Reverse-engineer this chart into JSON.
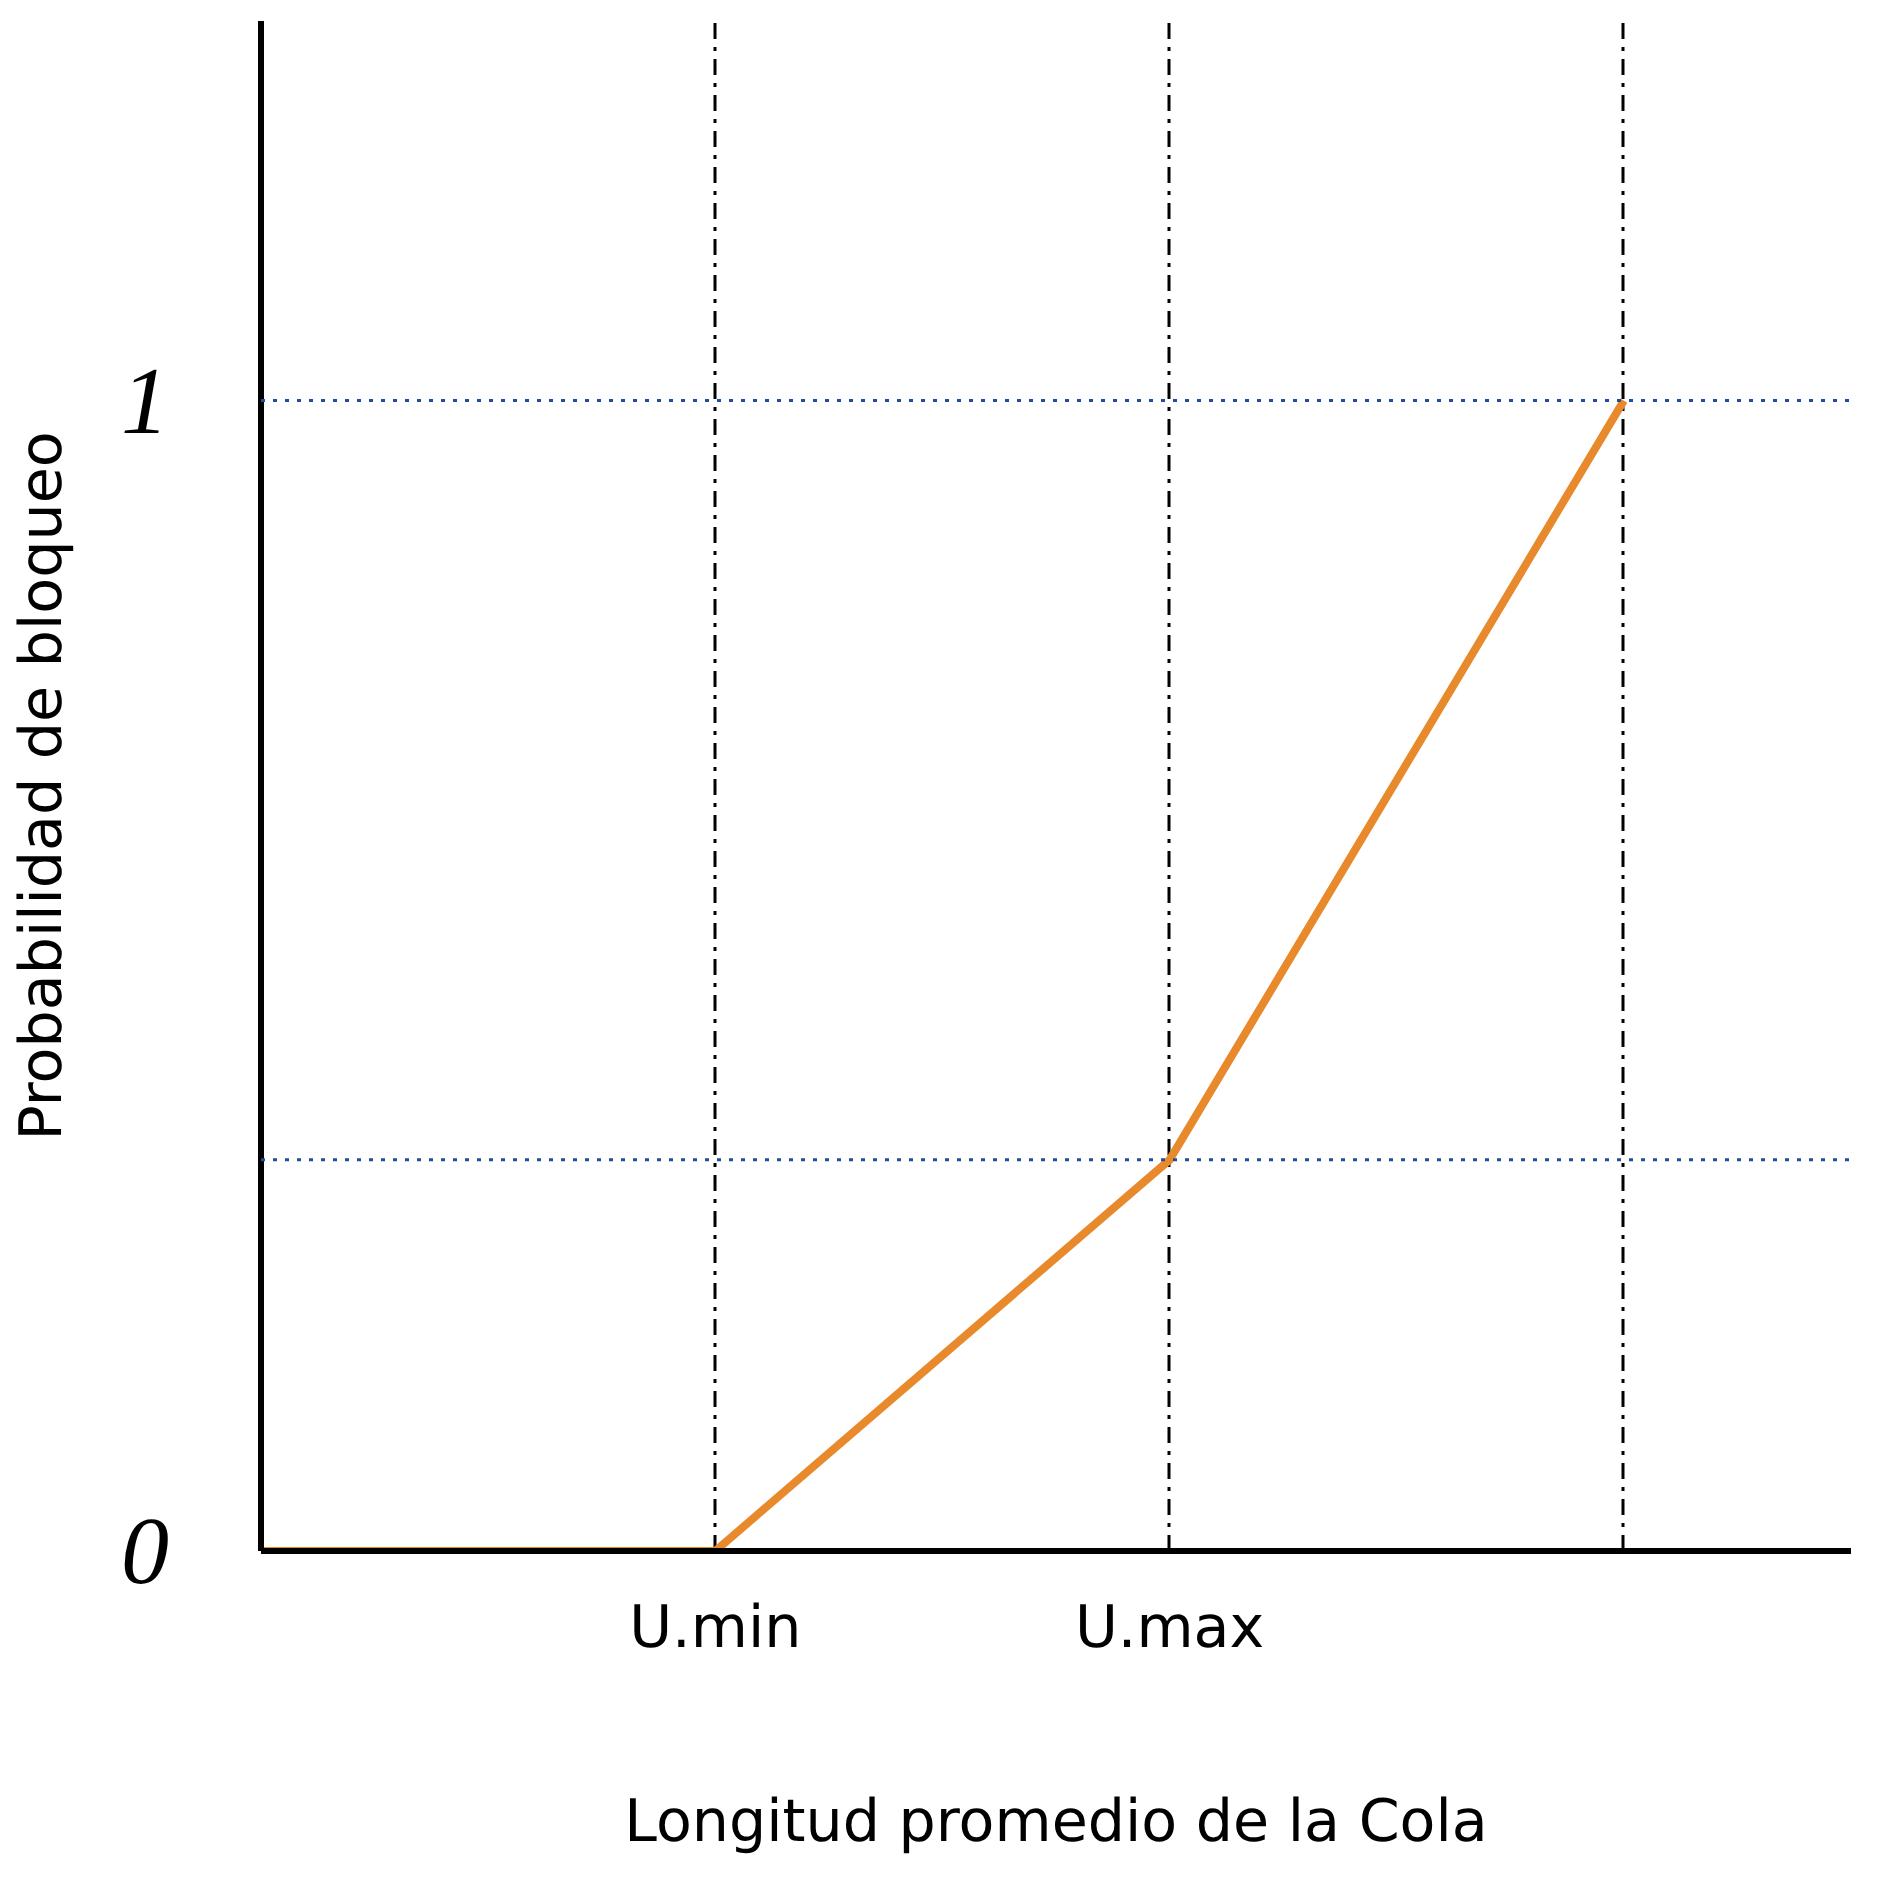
{
  "chart_data": {
    "type": "line",
    "xlabel": "Longitud promedio de la Cola",
    "ylabel": "Probabilidad de bloqueo",
    "categories": [
      null,
      "U.min",
      "U.max",
      null
    ],
    "series": [
      {
        "color": "#e8892b",
        "values": [
          0,
          0,
          0.34,
          1
        ]
      }
    ],
    "ylim": [
      0,
      1.33
    ],
    "yticks": [
      0,
      1
    ],
    "grid": "x",
    "marker": "none",
    "line_style": "solid",
    "ref_lines": [
      {
        "axis": "y",
        "value": 1,
        "color": "#1f4e9a",
        "line_style": "dotted"
      },
      {
        "axis": "y",
        "value": 0.34,
        "color": "#1f4e9a",
        "line_style": "dotted"
      }
    ]
  }
}
